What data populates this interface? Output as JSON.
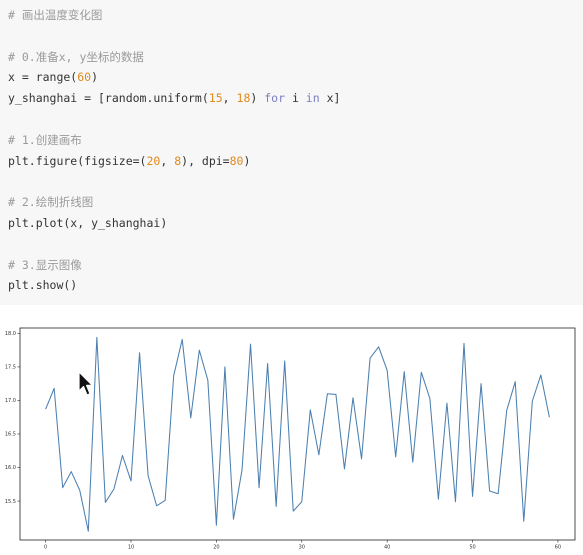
{
  "code": {
    "lines": [
      {
        "type": "comment",
        "text": "# 画出温度变化图"
      },
      {
        "type": "blank"
      },
      {
        "type": "comment",
        "text": "# 0.准备x, y坐标的数据"
      },
      {
        "type": "code",
        "parts": [
          {
            "t": "x = range("
          },
          {
            "t": "60",
            "c": "num"
          },
          {
            "t": ")"
          }
        ]
      },
      {
        "type": "code",
        "parts": [
          {
            "t": "y_shanghai = [random.uniform("
          },
          {
            "t": "15",
            "c": "num"
          },
          {
            "t": ", "
          },
          {
            "t": "18",
            "c": "num"
          },
          {
            "t": ") "
          },
          {
            "t": "for",
            "c": "kw"
          },
          {
            "t": " i "
          },
          {
            "t": "in",
            "c": "kw"
          },
          {
            "t": " x]"
          }
        ]
      },
      {
        "type": "blank"
      },
      {
        "type": "comment",
        "text": "# 1.创建画布"
      },
      {
        "type": "code",
        "parts": [
          {
            "t": "plt.figure(figsize=("
          },
          {
            "t": "20",
            "c": "num"
          },
          {
            "t": ", "
          },
          {
            "t": "8",
            "c": "num"
          },
          {
            "t": "), dpi="
          },
          {
            "t": "80",
            "c": "num"
          },
          {
            "t": ")"
          }
        ]
      },
      {
        "type": "blank"
      },
      {
        "type": "comment",
        "text": "# 2.绘制折线图"
      },
      {
        "type": "code",
        "parts": [
          {
            "t": "plt.plot(x, y_shanghai)"
          }
        ]
      },
      {
        "type": "blank"
      },
      {
        "type": "comment",
        "text": "# 3.显示图像"
      },
      {
        "type": "code",
        "parts": [
          {
            "t": "plt.show()"
          }
        ]
      }
    ]
  },
  "chart_data": {
    "type": "line",
    "title": "",
    "xlabel": "",
    "ylabel": "",
    "xlim": [
      -3,
      62
    ],
    "ylim": [
      14.92,
      18.08
    ],
    "xticks": [
      0,
      10,
      20,
      30,
      40,
      50,
      60
    ],
    "yticks": [
      15.5,
      16.0,
      16.5,
      17.0,
      17.5,
      18.0
    ],
    "ytick_labels": [
      "15.5",
      "16.0",
      "16.5",
      "17.0",
      "17.5",
      "18.0"
    ],
    "line_color": "#4c80b0",
    "grid": false,
    "x": [
      0,
      1,
      2,
      3,
      4,
      5,
      6,
      7,
      8,
      9,
      10,
      11,
      12,
      13,
      14,
      15,
      16,
      17,
      18,
      19,
      20,
      21,
      22,
      23,
      24,
      25,
      26,
      27,
      28,
      29,
      30,
      31,
      32,
      33,
      34,
      35,
      36,
      37,
      38,
      39,
      40,
      41,
      42,
      43,
      44,
      45,
      46,
      47,
      48,
      49,
      50,
      51,
      52,
      53,
      54,
      55,
      56,
      57,
      58,
      59
    ],
    "series": [
      {
        "values": [
          16.87,
          17.18,
          15.7,
          15.94,
          15.66,
          15.05,
          17.94,
          15.48,
          15.68,
          16.18,
          15.8,
          17.71,
          15.88,
          15.43,
          15.51,
          17.37,
          17.91,
          16.74,
          17.75,
          17.3,
          15.14,
          17.5,
          15.23,
          15.96,
          17.84,
          15.7,
          17.55,
          15.42,
          17.59,
          15.35,
          15.49,
          16.86,
          16.19,
          17.1,
          17.09,
          15.98,
          17.04,
          16.13,
          17.63,
          17.8,
          17.45,
          16.16,
          17.43,
          16.08,
          17.42,
          17.03,
          15.53,
          16.96,
          15.49,
          17.85,
          15.57,
          17.25,
          15.65,
          15.61,
          16.85,
          17.28,
          15.2,
          16.99,
          17.38,
          16.75
        ]
      }
    ]
  }
}
